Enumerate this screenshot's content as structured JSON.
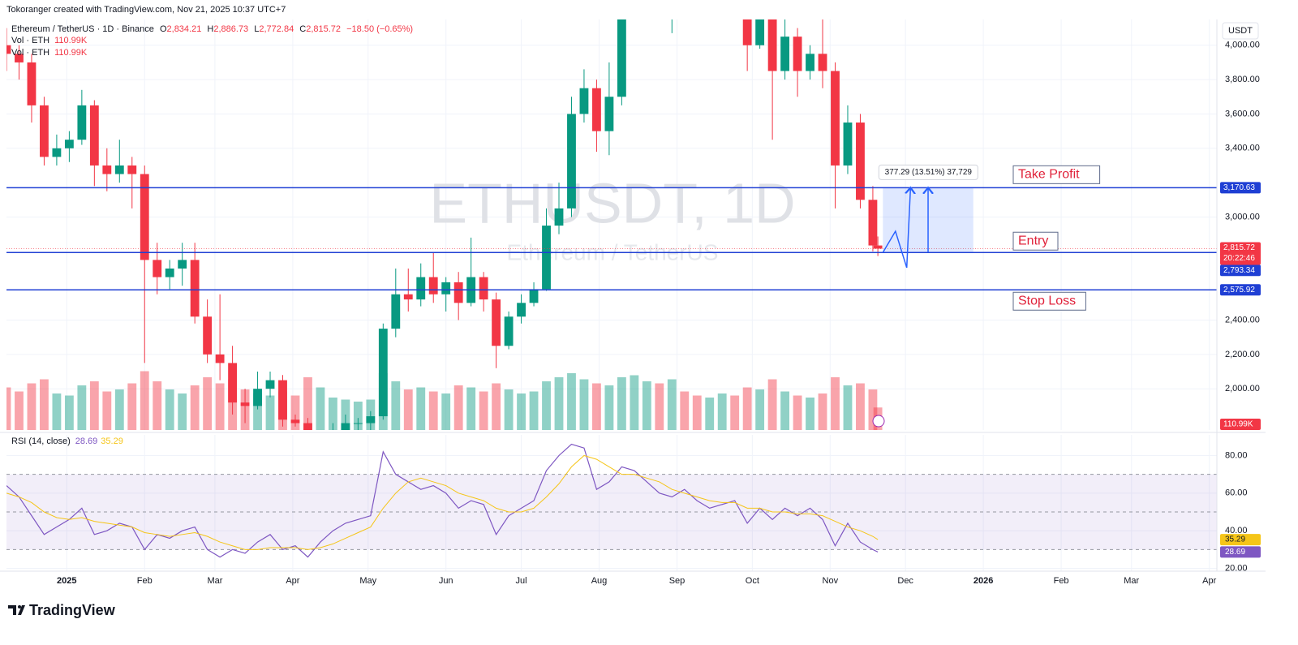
{
  "header": {
    "credit": "Tokoranger created with TradingView.com, Nov 21, 2025 10:37 UTC+7",
    "symbol": "Ethereum / TetherUS · 1D · Binance",
    "ohlc": [
      {
        "key": "O",
        "value": "2,834.21"
      },
      {
        "key": "H",
        "value": "2,886.73"
      },
      {
        "key": "L",
        "value": "2,772.84"
      },
      {
        "key": "C",
        "value": "2,815.72"
      }
    ],
    "change": "−18.50 (−0.65%)",
    "volume_rows": [
      {
        "name": "Vol · ETH",
        "value": "110.99K"
      },
      {
        "name": "Vol · ETH",
        "value": "110.99K"
      }
    ],
    "currency": "USDT",
    "watermark": "ETHUSDT, 1D",
    "watermark_sub": "Ethereum / TetherUS",
    "brand": "TradingView"
  },
  "chart_data": {
    "type": "candlestick",
    "up_color": "#089981",
    "down_color": "#f23645",
    "grid": true,
    "x": [
      -24,
      -19,
      -14,
      -9,
      -4,
      1,
      6,
      11,
      16,
      21,
      26,
      31,
      36,
      41,
      46,
      51,
      56,
      61,
      66,
      71,
      76,
      81,
      86,
      91,
      96,
      101,
      106,
      111,
      116,
      121,
      126,
      131,
      136,
      141,
      146,
      151,
      156,
      161,
      166,
      171,
      176,
      181,
      186,
      191,
      196,
      201,
      206,
      211,
      216,
      221,
      226,
      231,
      236,
      241,
      246,
      251,
      256,
      261,
      266,
      271,
      276,
      281,
      286,
      291,
      296,
      301,
      306,
      311,
      316,
      321,
      323
    ],
    "open": [
      4000,
      3950,
      3900,
      3650,
      3350,
      3400,
      3450,
      3650,
      3300,
      3250,
      3300,
      3250,
      2750,
      2650,
      2700,
      2750,
      2420,
      2200,
      2150,
      1920,
      1900,
      2000,
      2050,
      1820,
      1800,
      1580,
      1600,
      1750,
      1800,
      1800,
      1840,
      2350,
      2550,
      2520,
      2650,
      2550,
      2620,
      2500,
      2650,
      2520,
      2250,
      2420,
      2500,
      2580,
      2950,
      3050,
      3600,
      3750,
      3500,
      3700,
      4200,
      4450,
      4700,
      4300,
      4500,
      4400,
      4300,
      4450,
      4600,
      4500,
      4000,
      4450,
      3850,
      4050,
      3850,
      3950,
      3850,
      3300,
      3550,
      3100,
      2834.21
    ],
    "high": [
      4100,
      4000,
      3950,
      3700,
      3480,
      3500,
      3740,
      3680,
      3400,
      3450,
      3350,
      3300,
      2850,
      2750,
      2850,
      2850,
      2520,
      2550,
      2250,
      2000,
      2100,
      2100,
      2080,
      1850,
      1830,
      1700,
      1800,
      1850,
      1830,
      1870,
      2380,
      2700,
      2700,
      2730,
      2790,
      2650,
      2680,
      2880,
      2680,
      2560,
      2450,
      2550,
      2620,
      3050,
      3200,
      3700,
      3860,
      3800,
      3900,
      4250,
      4500,
      4800,
      4800,
      4950,
      4650,
      4480,
      4500,
      4700,
      4650,
      4520,
      4500,
      4750,
      4300,
      4100,
      4000,
      4200,
      3900,
      3650,
      3600,
      3180,
      2886.73
    ],
    "low": [
      3850,
      3800,
      3550,
      3300,
      3300,
      3320,
      3420,
      3180,
      3150,
      3200,
      3050,
      2150,
      2550,
      2580,
      2600,
      2380,
      2150,
      2050,
      1850,
      1800,
      1880,
      1950,
      1780,
      1780,
      1400,
      1540,
      1580,
      1720,
      1750,
      1760,
      1820,
      2300,
      2450,
      2480,
      2500,
      2450,
      2400,
      2480,
      2450,
      2120,
      2230,
      2380,
      2480,
      2570,
      2900,
      3000,
      3550,
      3380,
      3360,
      3650,
      4150,
      4200,
      4250,
      4070,
      4350,
      4250,
      4250,
      4400,
      4450,
      3850,
      3980,
      3450,
      3800,
      3700,
      3800,
      3750,
      3050,
      3250,
      3050,
      2800,
      2772.84
    ],
    "close": [
      3950,
      3900,
      3650,
      3350,
      3400,
      3450,
      3650,
      3300,
      3250,
      3300,
      3250,
      2750,
      2650,
      2700,
      2750,
      2420,
      2200,
      2150,
      1920,
      1900,
      2000,
      2050,
      1820,
      1800,
      1580,
      1600,
      1750,
      1800,
      1800,
      1840,
      2350,
      2550,
      2520,
      2650,
      2550,
      2620,
      2500,
      2650,
      2520,
      2250,
      2420,
      2500,
      2580,
      2950,
      3050,
      3600,
      3750,
      3500,
      3700,
      4200,
      4450,
      4700,
      4300,
      4500,
      4400,
      4300,
      4450,
      4600,
      4500,
      4000,
      4450,
      3850,
      4050,
      3850,
      3950,
      3850,
      3300,
      3550,
      3100,
      2834.21,
      2815.72
    ],
    "xlim": [
      -24,
      458
    ],
    "xticks": [
      {
        "value": 0,
        "label": "2025"
      },
      {
        "value": 31,
        "label": "Feb"
      },
      {
        "value": 59,
        "label": "Mar"
      },
      {
        "value": 90,
        "label": "Apr"
      },
      {
        "value": 120,
        "label": "May"
      },
      {
        "value": 151,
        "label": "Jun"
      },
      {
        "value": 181,
        "label": "Jul"
      },
      {
        "value": 212,
        "label": "Aug"
      },
      {
        "value": 243,
        "label": "Sep"
      },
      {
        "value": 273,
        "label": "Oct"
      },
      {
        "value": 304,
        "label": "Nov"
      },
      {
        "value": 334,
        "label": "Dec"
      },
      {
        "value": 365,
        "label": "2026"
      },
      {
        "value": 396,
        "label": "Feb"
      },
      {
        "value": 424,
        "label": "Mar"
      },
      {
        "value": 455,
        "label": "Apr"
      }
    ],
    "ylim": [
      1760,
      4150
    ],
    "yticks": [
      {
        "value": 2000,
        "label": "2,000.00"
      },
      {
        "value": 2200,
        "label": "2,200.00"
      },
      {
        "value": 2400,
        "label": "2,400.00"
      },
      {
        "value": 3000,
        "label": "3,000.00"
      },
      {
        "value": 3400,
        "label": "3,400.00"
      },
      {
        "value": 3600,
        "label": "3,600.00"
      },
      {
        "value": 3800,
        "label": "3,800.00"
      },
      {
        "value": 4000,
        "label": "4,000.00"
      }
    ],
    "last_price": {
      "value": 2815.72,
      "label": "2,815.72",
      "countdown": "20:22:46",
      "color": "#f23645"
    },
    "levels": [
      {
        "name": "Take Profit",
        "value": 3170.63,
        "label": "3,170.63"
      },
      {
        "name": "Entry",
        "value": 2793.34,
        "label": "2,793.34"
      },
      {
        "name": "Stop Loss",
        "value": 2575.92,
        "label": "2,575.92"
      }
    ],
    "level_color": "#1f3fd4",
    "level_text_color": "#e0223a",
    "projection": {
      "xlim": [
        325,
        361
      ],
      "ylim": [
        2793.34,
        3170.63
      ],
      "label": "377.29 (13.51%) 37,729",
      "color": "#2962ff",
      "path_x": [
        325,
        330,
        334.5,
        336
      ],
      "path_y": [
        2793.34,
        2917,
        2705,
        3170.63
      ],
      "arrow_x": 343
    },
    "volume": {
      "values": [
        210,
        190,
        230,
        250,
        180,
        170,
        220,
        240,
        190,
        200,
        230,
        290,
        240,
        200,
        180,
        220,
        260,
        230,
        250,
        200,
        180,
        170,
        190,
        170,
        260,
        210,
        160,
        150,
        140,
        150,
        280,
        240,
        200,
        210,
        190,
        180,
        220,
        210,
        190,
        230,
        200,
        180,
        190,
        240,
        260,
        280,
        250,
        230,
        220,
        260,
        270,
        240,
        230,
        250,
        190,
        170,
        160,
        180,
        170,
        210,
        200,
        250,
        190,
        170,
        160,
        180,
        260,
        220,
        230,
        200,
        110.99
      ],
      "ylim": [
        0,
        300
      ],
      "last_label": "110.99K"
    },
    "rsi": {
      "title": "RSI (14, close)",
      "ylim": [
        18.5,
        91
      ],
      "yticks": [
        {
          "value": 20,
          "label": "20.00"
        },
        {
          "value": 40,
          "label": "40.00"
        },
        {
          "value": 60,
          "label": "60.00"
        },
        {
          "value": 80,
          "label": "80.00"
        }
      ],
      "bands": [
        30,
        50,
        70
      ],
      "series": [
        {
          "color": "#7e57c2",
          "last_label": "28.69",
          "values": [
            64,
            58,
            48,
            38,
            42,
            46,
            52,
            38,
            40,
            44,
            42,
            30,
            38,
            36,
            40,
            42,
            30,
            26,
            30,
            28,
            34,
            38,
            30,
            32,
            26,
            34,
            40,
            44,
            46,
            48,
            82,
            70,
            66,
            62,
            64,
            60,
            52,
            56,
            54,
            38,
            48,
            52,
            56,
            72,
            80,
            86,
            84,
            62,
            66,
            74,
            72,
            66,
            60,
            58,
            62,
            56,
            52,
            54,
            56,
            44,
            52,
            46,
            52,
            48,
            52,
            46,
            32,
            44,
            34,
            30,
            28.69
          ]
        },
        {
          "color": "#f5c518",
          "last_label": "35.29",
          "values": [
            60,
            58,
            55,
            50,
            47,
            46,
            47,
            45,
            44,
            43,
            42,
            39,
            38,
            37,
            38,
            39,
            37,
            34,
            32,
            30,
            30,
            31,
            31,
            31,
            30,
            31,
            33,
            36,
            39,
            42,
            52,
            60,
            66,
            68,
            66,
            64,
            60,
            58,
            56,
            52,
            50,
            50,
            52,
            58,
            65,
            74,
            80,
            78,
            74,
            70,
            70,
            68,
            66,
            62,
            60,
            58,
            56,
            55,
            55,
            52,
            52,
            50,
            50,
            49,
            49,
            48,
            45,
            42,
            40,
            37,
            35.29
          ]
        }
      ]
    }
  }
}
